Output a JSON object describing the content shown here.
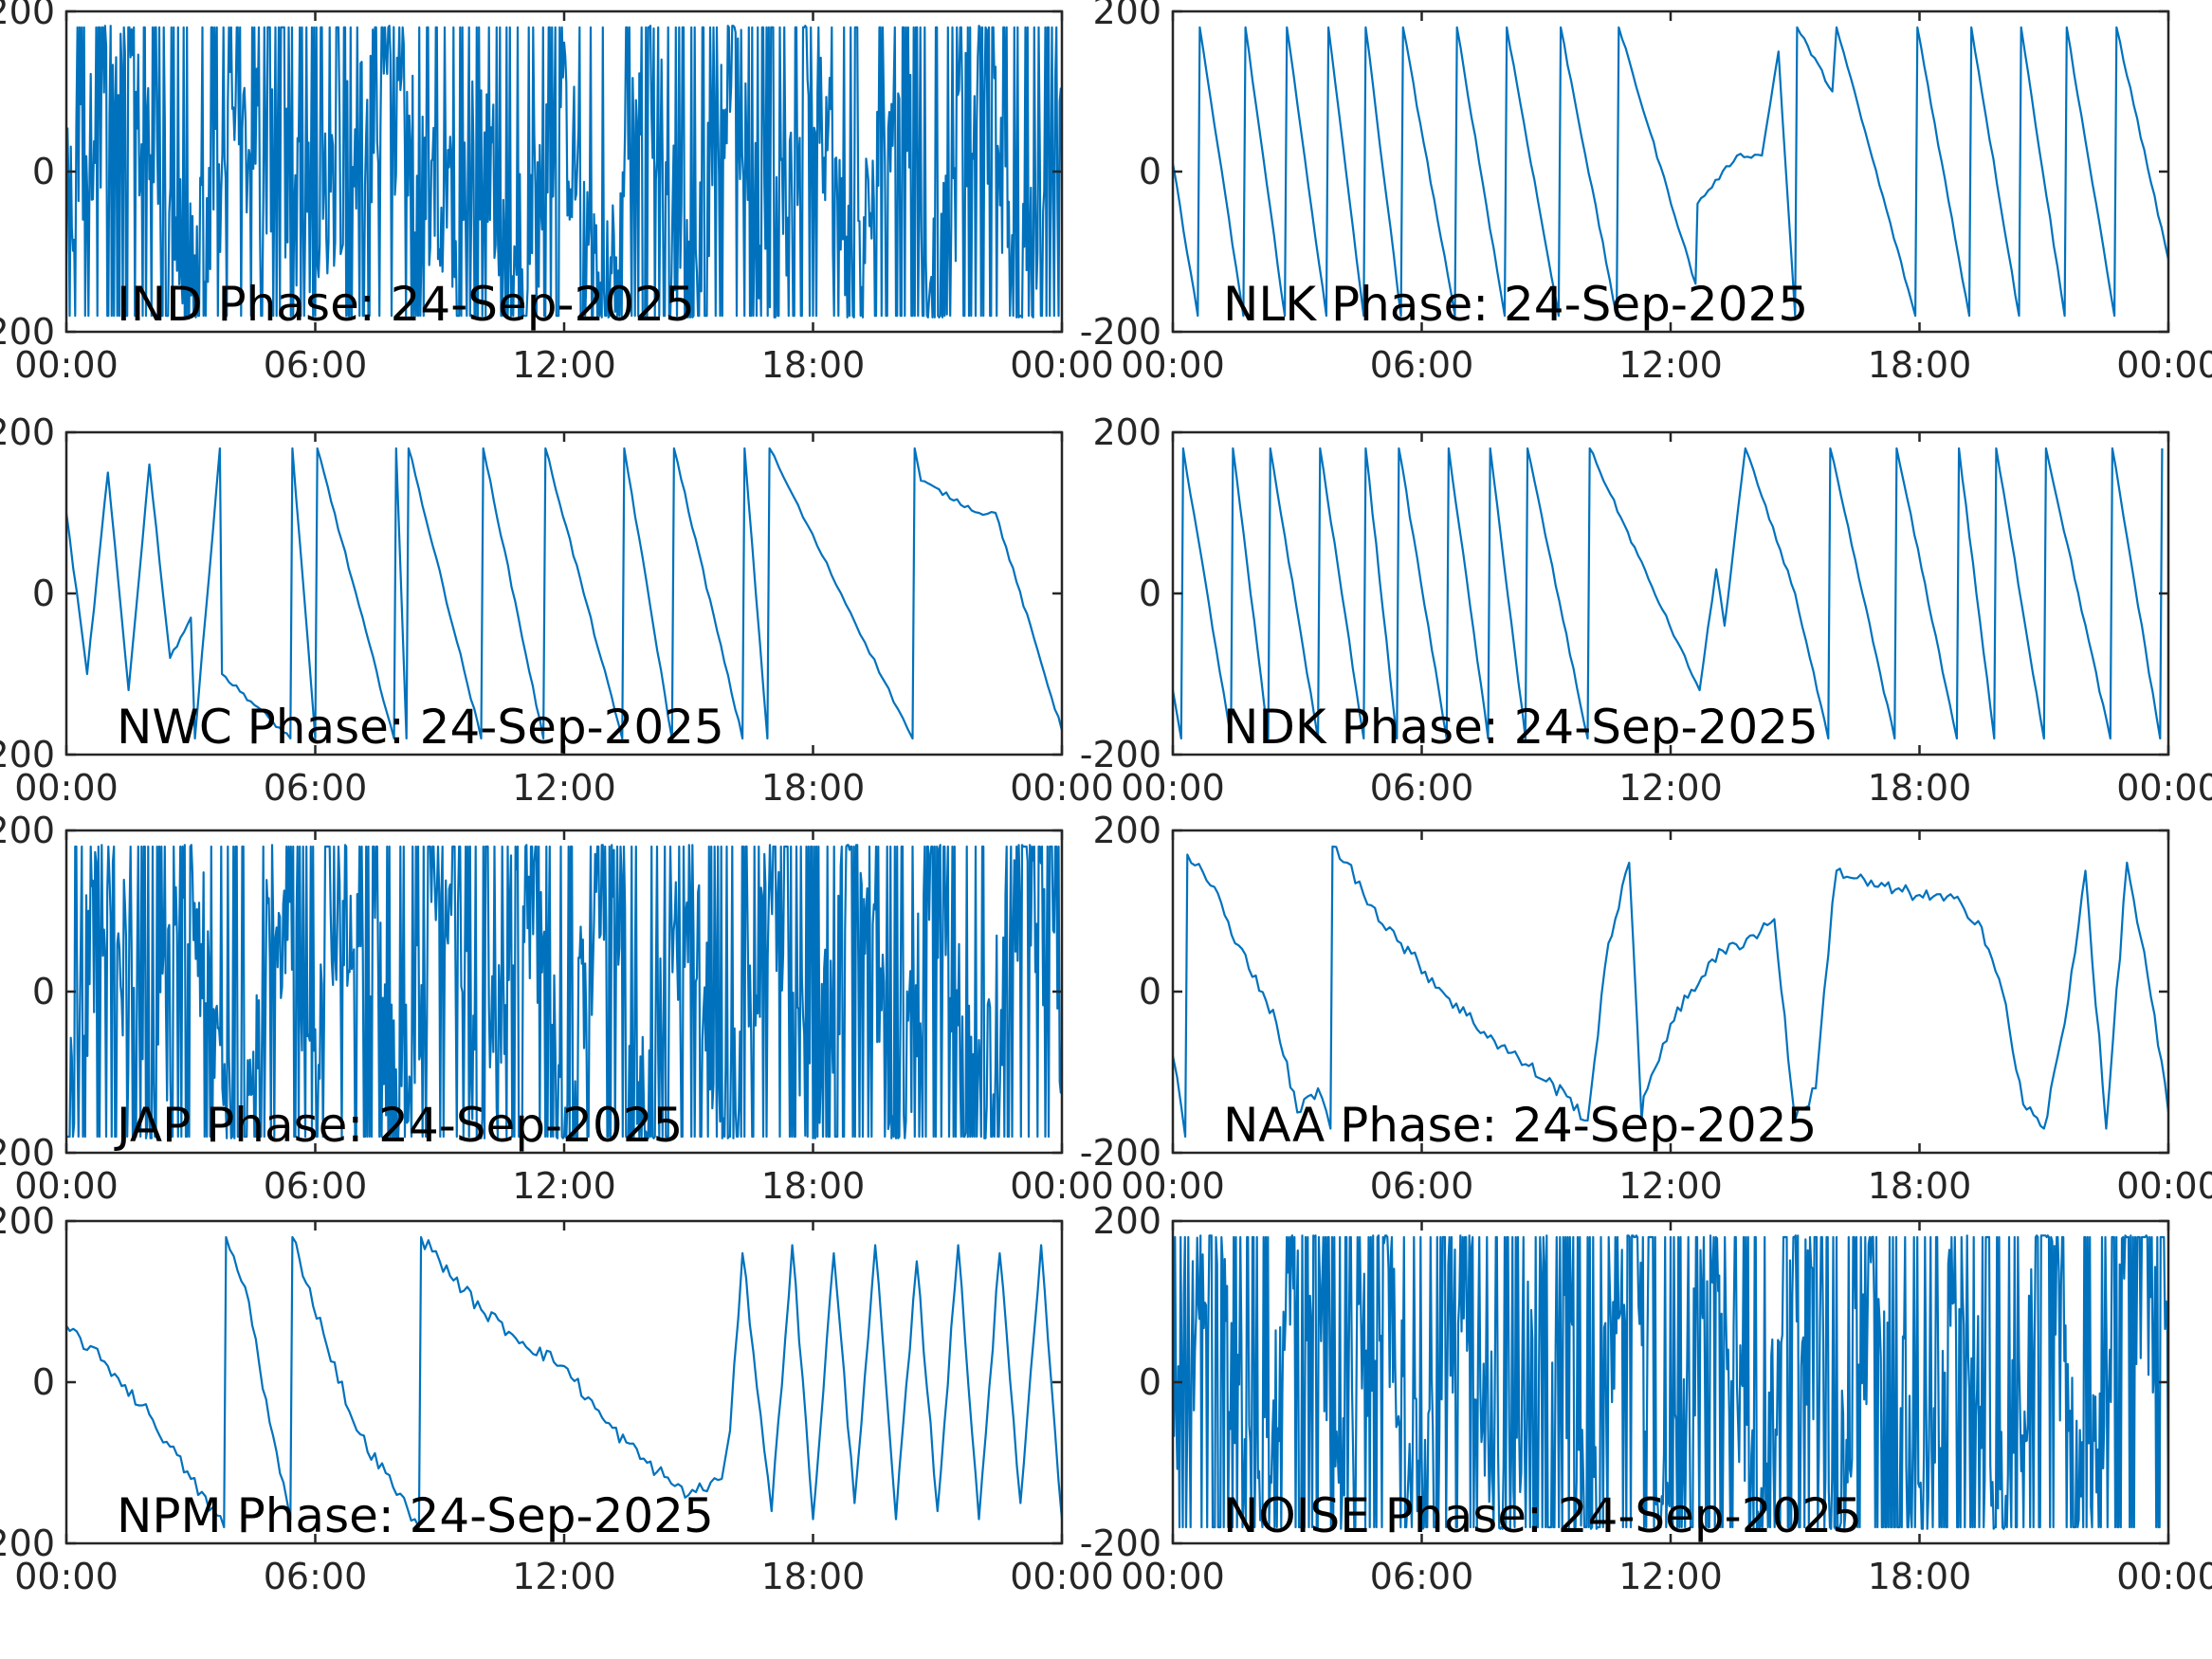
{
  "colors": {
    "line": "#0072BD",
    "axes": "#262626"
  },
  "chart_data": [
    {
      "type": "line",
      "station": "IND",
      "label": "IND Phase: 24-Sep-2025",
      "xlim": [
        "00:00",
        "24:00"
      ],
      "xticks": [
        "00:00",
        "06:00",
        "12:00",
        "18:00",
        "00:00"
      ],
      "ylim": [
        -200,
        200
      ],
      "yticks": [
        "-200",
        "0",
        "200"
      ],
      "grid": false,
      "pattern": "noisy",
      "x_hours": [
        0,
        1,
        2,
        3,
        4,
        5,
        6,
        7,
        8,
        9,
        10,
        11,
        12,
        13,
        14,
        15,
        16,
        17,
        18,
        19,
        20,
        21,
        22,
        23,
        24
      ],
      "y": [
        -60,
        120,
        30,
        -150,
        40,
        10,
        -80,
        60,
        80,
        -70,
        40,
        -100,
        60,
        -150,
        150,
        -160,
        170,
        -150,
        160,
        -160,
        150,
        -170,
        160,
        -150,
        50
      ]
    },
    {
      "type": "line",
      "station": "NLK",
      "label": "NLK Phase: 24-Sep-2025",
      "xlim": [
        "00:00",
        "24:00"
      ],
      "xticks": [
        "00:00",
        "06:00",
        "12:00",
        "18:00",
        "00:00"
      ],
      "ylim": [
        -200,
        200
      ],
      "yticks": [
        "-200",
        "0",
        "200"
      ],
      "grid": false,
      "pattern": "sawtooth",
      "x_hours": [
        0,
        0.6,
        0.65,
        1.7,
        1.75,
        2.7,
        2.75,
        3.7,
        3.75,
        4.6,
        4.65,
        5.5,
        5.55,
        6.8,
        6.85,
        8.0,
        8.05,
        9.3,
        9.35,
        10.7,
        10.75,
        12.6,
        12.65,
        13.6,
        14.2,
        14.6,
        15.0,
        15.05,
        15.9,
        16.0,
        17.9,
        17.95,
        19.2,
        19.25,
        20.4,
        20.45,
        21.5,
        21.55,
        22.7,
        22.75,
        24.0
      ],
      "y": [
        10,
        -180,
        180,
        -180,
        180,
        -180,
        180,
        -180,
        180,
        -180,
        180,
        -180,
        180,
        -180,
        180,
        -180,
        180,
        -180,
        180,
        -180,
        180,
        -140,
        -40,
        20,
        20,
        150,
        -180,
        180,
        100,
        180,
        -180,
        180,
        -180,
        180,
        -180,
        180,
        -180,
        180,
        -180,
        180,
        -110
      ]
    },
    {
      "type": "line",
      "station": "NWC",
      "label": "NWC Phase: 24-Sep-2025",
      "xlim": [
        "00:00",
        "24:00"
      ],
      "xticks": [
        "00:00",
        "06:00",
        "12:00",
        "18:00",
        "00:00"
      ],
      "ylim": [
        -200,
        200
      ],
      "yticks": [
        "-200",
        "0",
        "200"
      ],
      "grid": false,
      "pattern": "sawtooth",
      "x_hours": [
        0,
        0.5,
        1.0,
        1.5,
        2.0,
        2.5,
        3.0,
        3.1,
        3.7,
        3.75,
        5.4,
        5.45,
        6.0,
        6.05,
        7.9,
        7.95,
        8.2,
        8.25,
        10.0,
        10.05,
        11.5,
        11.55,
        13.4,
        13.45,
        14.6,
        14.65,
        16.3,
        16.35,
        16.9,
        16.95,
        20.4,
        20.45,
        20.6,
        22.0,
        22.4,
        24.0
      ],
      "y": [
        100,
        -100,
        150,
        -120,
        160,
        -80,
        -30,
        -180,
        180,
        -100,
        -180,
        180,
        -180,
        180,
        -180,
        180,
        -180,
        180,
        -180,
        180,
        -180,
        180,
        -180,
        180,
        -180,
        180,
        -180,
        180,
        -180,
        180,
        -180,
        180,
        140,
        100,
        100,
        -170
      ]
    },
    {
      "type": "line",
      "station": "NDK",
      "label": "NDK Phase: 24-Sep-2025",
      "xlim": [
        "00:00",
        "24:00"
      ],
      "xticks": [
        "00:00",
        "06:00",
        "12:00",
        "18:00",
        "00:00"
      ],
      "ylim": [
        -200,
        200
      ],
      "yticks": [
        "-200",
        "0",
        "200"
      ],
      "grid": false,
      "pattern": "sawtooth",
      "x_hours": [
        0,
        0.2,
        0.25,
        1.4,
        1.45,
        2.3,
        2.35,
        3.5,
        3.55,
        4.6,
        4.65,
        5.4,
        5.45,
        6.6,
        6.65,
        7.6,
        7.65,
        8.5,
        8.55,
        10.0,
        10.05,
        11.8,
        12.7,
        13.1,
        13.3,
        13.8,
        14.2,
        15.0,
        15.8,
        15.85,
        17.4,
        17.45,
        18.9,
        18.95,
        19.8,
        19.85,
        21.0,
        21.05,
        22.6,
        22.65,
        23.8,
        23.85
      ],
      "y": [
        -120,
        -180,
        180,
        -180,
        180,
        -180,
        180,
        -180,
        180,
        -180,
        180,
        -180,
        180,
        -180,
        180,
        -180,
        180,
        -180,
        180,
        -180,
        180,
        -20,
        -120,
        30,
        -40,
        180,
        120,
        0,
        -180,
        180,
        -180,
        180,
        -180,
        180,
        -180,
        180,
        -180,
        180,
        -180,
        180,
        -180,
        180
      ]
    },
    {
      "type": "line",
      "station": "JAP",
      "label": "JAP Phase: 24-Sep-2025",
      "xlim": [
        "00:00",
        "24:00"
      ],
      "xticks": [
        "00:00",
        "06:00",
        "12:00",
        "18:00",
        "00:00"
      ],
      "ylim": [
        -200,
        200
      ],
      "yticks": [
        "-200",
        "0",
        "200"
      ],
      "grid": false,
      "pattern": "noisy",
      "x_hours": [
        0,
        1,
        2,
        3,
        4,
        5,
        6,
        7,
        8,
        9,
        10,
        11,
        12,
        13,
        14,
        15,
        16,
        17,
        18,
        19,
        20,
        21,
        22,
        23,
        24
      ],
      "y": [
        -120,
        160,
        -150,
        130,
        -170,
        120,
        -100,
        170,
        -160,
        150,
        -170,
        160,
        -150,
        170,
        -160,
        140,
        -170,
        160,
        -150,
        170,
        -160,
        150,
        -170,
        160,
        -40
      ]
    },
    {
      "type": "line",
      "station": "NAA",
      "label": "NAA Phase: 24-Sep-2025",
      "xlim": [
        "00:00",
        "24:00"
      ],
      "xticks": [
        "00:00",
        "06:00",
        "12:00",
        "18:00",
        "00:00"
      ],
      "ylim": [
        -200,
        200
      ],
      "yticks": [
        "-200",
        "0",
        "200"
      ],
      "grid": false,
      "pattern": "wander",
      "x_hours": [
        0,
        0.3,
        0.35,
        1.0,
        1.5,
        2.0,
        2.5,
        3.0,
        3.5,
        3.8,
        3.85,
        4.2,
        4.6,
        5.5,
        6.5,
        7.5,
        8.5,
        9.5,
        10.0,
        10.5,
        11.0,
        11.3,
        11.35,
        12.0,
        13.0,
        14.0,
        14.5,
        15.0,
        15.5,
        15.9,
        16.0,
        17.0,
        18.0,
        19.0,
        19.5,
        20.0,
        20.5,
        21.0,
        21.5,
        22.0,
        22.5,
        23.0,
        23.5,
        24.0
      ],
      "y": [
        -80,
        -180,
        170,
        130,
        60,
        20,
        -40,
        -150,
        -120,
        -170,
        180,
        160,
        120,
        60,
        0,
        -50,
        -90,
        -130,
        -160,
        60,
        160,
        -160,
        -130,
        -40,
        40,
        70,
        90,
        -160,
        -120,
        110,
        150,
        130,
        120,
        110,
        80,
        0,
        -140,
        -170,
        -40,
        150,
        -170,
        160,
        20,
        -150
      ]
    },
    {
      "type": "line",
      "station": "NPM",
      "label": "NPM Phase: 24-Sep-2025",
      "xlim": [
        "00:00",
        "24:00"
      ],
      "xticks": [
        "00:00",
        "06:00",
        "12:00",
        "18:00",
        "00:00"
      ],
      "ylim": [
        -200,
        200
      ],
      "yticks": [
        "-200",
        "0",
        "200"
      ],
      "grid": false,
      "pattern": "wander",
      "x_hours": [
        0,
        1.0,
        2.0,
        2.5,
        3.0,
        3.8,
        3.85,
        4.4,
        4.9,
        5.4,
        5.45,
        6.2,
        7.0,
        8.4,
        8.5,
        8.55,
        9.0,
        10.0,
        11.0,
        12.0,
        13.0,
        14.0,
        15.0,
        15.8,
        16.0,
        16.3,
        17.0,
        17.5,
        18.0,
        18.5,
        19.0,
        19.5,
        20.0,
        20.5,
        21.0,
        21.5,
        22.0,
        22.5,
        23.0,
        23.5,
        24.0
      ],
      "y": [
        70,
        20,
        -40,
        -80,
        -120,
        -180,
        180,
        100,
        -50,
        -170,
        180,
        60,
        -60,
        -170,
        -180,
        180,
        150,
        90,
        50,
        20,
        -50,
        -100,
        -140,
        -120,
        -60,
        160,
        -160,
        170,
        -170,
        160,
        -150,
        170,
        -170,
        150,
        -160,
        170,
        -170,
        160,
        -150,
        170,
        -170
      ]
    },
    {
      "type": "line",
      "station": "NOISE",
      "label": "NOISE Phase: 24-Sep-2025",
      "xlim": [
        "00:00",
        "24:00"
      ],
      "xticks": [
        "00:00",
        "06:00",
        "12:00",
        "18:00",
        "00:00"
      ],
      "ylim": [
        -200,
        200
      ],
      "yticks": [
        "-200",
        "0",
        "200"
      ],
      "grid": false,
      "pattern": "noisy",
      "x_hours": [
        0,
        1,
        2,
        3,
        3.5,
        4,
        5,
        6,
        7,
        8,
        9,
        10,
        11,
        12,
        13,
        14,
        15,
        16,
        17,
        18,
        19,
        20,
        21,
        22,
        23,
        24
      ],
      "y": [
        -40,
        160,
        -150,
        140,
        150,
        -170,
        160,
        -160,
        150,
        -170,
        170,
        -150,
        160,
        -170,
        150,
        -160,
        170,
        -150,
        160,
        -170,
        150,
        -160,
        170,
        -150,
        160,
        20
      ]
    }
  ]
}
